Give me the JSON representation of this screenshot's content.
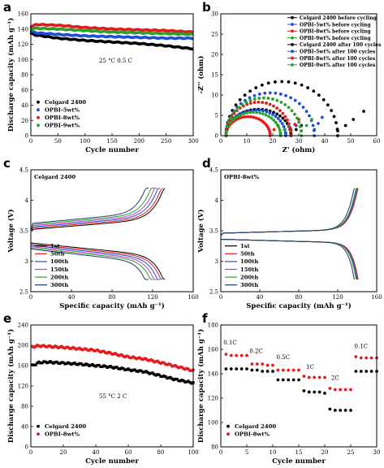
{
  "chart_data": [
    {
      "id": "a",
      "type": "scatter",
      "panel_label": "a",
      "xlabel": "Cycle number",
      "ylabel": "Discharge capacity (mAh g⁻¹)",
      "xlim": [
        0,
        300
      ],
      "ylim": [
        0,
        160
      ],
      "xticks": [
        0,
        50,
        100,
        150,
        200,
        250,
        300
      ],
      "yticks": [
        0,
        20,
        40,
        60,
        80,
        100,
        120,
        140,
        160
      ],
      "annotation": "25 °C 0.5 C",
      "legend_position": "bottom-left",
      "series": [
        {
          "name": "Celgard 2400",
          "color": "#000000",
          "x": [
            1,
            10,
            50,
            100,
            150,
            200,
            250,
            300
          ],
          "y": [
            134,
            132,
            128,
            125,
            123,
            121,
            118,
            114
          ]
        },
        {
          "name": "OPBI-5wt%",
          "color": "#1f4fd8",
          "x": [
            1,
            10,
            50,
            100,
            150,
            200,
            250,
            300
          ],
          "y": [
            137,
            135,
            133,
            131,
            130,
            129,
            128,
            128
          ]
        },
        {
          "name": "OPBI-8wt%",
          "color": "#e41a1c",
          "x": [
            1,
            10,
            50,
            100,
            150,
            200,
            250,
            300
          ],
          "y": [
            143,
            146,
            145,
            142,
            140,
            139,
            138,
            136
          ]
        },
        {
          "name": "OPBI-9wt%",
          "color": "#2ca02c",
          "x": [
            1,
            10,
            50,
            100,
            150,
            200,
            250,
            300
          ],
          "y": [
            140,
            141,
            140,
            138,
            136,
            135,
            134,
            133
          ]
        }
      ]
    },
    {
      "id": "b",
      "type": "scatter",
      "panel_label": "b",
      "xlabel": "Z' (ohm)",
      "ylabel": "-Z'' (ohm)",
      "xlim": [
        0,
        60
      ],
      "ylim": [
        0,
        30
      ],
      "xticks": [
        0,
        10,
        20,
        30,
        40,
        50,
        60
      ],
      "yticks": [
        0,
        5,
        10,
        15,
        20,
        25,
        30
      ],
      "legend_position": "top-right",
      "series": [
        {
          "name": "Celgard 2400 before cycling",
          "color": "#000000",
          "arc": [
            2,
            27,
            0.52
          ],
          "tail": [
            [
              27,
              0.5
            ],
            [
              29,
              1.5
            ],
            [
              31,
              2.5
            ]
          ]
        },
        {
          "name": "OPBI-5wt% before cycling",
          "color": "#1f4fd8",
          "arc": [
            2,
            25,
            0.55
          ],
          "tail": [
            [
              25,
              0.5
            ],
            [
              27,
              1.5
            ],
            [
              29,
              2.5
            ]
          ]
        },
        {
          "name": "OPBI-8wt% before cycling",
          "color": "#e41a1c",
          "arc": [
            2,
            19,
            0.55
          ],
          "tail": [
            [
              19,
              0.5
            ],
            [
              20.5,
              1.5
            ],
            [
              22,
              2.5
            ]
          ]
        },
        {
          "name": "OPBI-9wt% before cycling",
          "color": "#2ca02c",
          "arc": [
            2,
            23,
            0.55
          ],
          "tail": [
            [
              23,
              0.5
            ],
            [
              24.5,
              1.5
            ],
            [
              26,
              2.5
            ]
          ]
        },
        {
          "name": "Celgard 2400 after 100 cycles",
          "color": "#000000",
          "arc": [
            2,
            45,
            0.62
          ],
          "tail": [
            [
              45,
              1.2
            ],
            [
              48,
              2.5
            ],
            [
              51,
              4
            ],
            [
              55,
              6
            ]
          ]
        },
        {
          "name": "OPBI-5wt% after 100 cycles",
          "color": "#1f4fd8",
          "arc": [
            2,
            36,
            0.62
          ],
          "tail": [
            [
              36,
              1.5
            ],
            [
              37.5,
              3
            ],
            [
              39,
              4.5
            ]
          ]
        },
        {
          "name": "OPBI-8wt% after 100 cycles",
          "color": "#e41a1c",
          "arc": [
            2,
            27,
            0.66
          ],
          "tail": [
            [
              27,
              1.2
            ],
            [
              28.5,
              2.8
            ],
            [
              30,
              4
            ]
          ]
        },
        {
          "name": "OPBI-9wt% after 100 cycles",
          "color": "#2ca02c",
          "arc": [
            2,
            31,
            0.64
          ],
          "tail": [
            [
              31,
              1.2
            ],
            [
              33,
              2.5
            ],
            [
              35,
              4
            ]
          ]
        }
      ]
    },
    {
      "id": "c",
      "type": "line",
      "panel_label": "c",
      "title": "Celgard 2400",
      "xlabel": "Specific capacity (mAh g⁻¹)",
      "ylabel": "Voltage (V)",
      "xlim": [
        0,
        160
      ],
      "ylim": [
        2.5,
        4.5
      ],
      "xticks": [
        0,
        40,
        80,
        120,
        160
      ],
      "yticks": [
        2.5,
        3.0,
        3.5,
        4.0,
        4.5
      ],
      "legend_position": "bottom-left",
      "series": [
        {
          "name": "1st",
          "color": "#000000",
          "capacity": 132
        },
        {
          "name": "50th",
          "color": "#e41a1c",
          "capacity": 130
        },
        {
          "name": "100th",
          "color": "#1f4fd8",
          "capacity": 127
        },
        {
          "name": "150th",
          "color": "#c040c0",
          "capacity": 124
        },
        {
          "name": "200th",
          "color": "#2ca02c",
          "capacity": 121
        },
        {
          "name": "300th",
          "color": "#1f3a6e",
          "capacity": 116
        }
      ]
    },
    {
      "id": "d",
      "type": "line",
      "panel_label": "d",
      "title": "OPBI-8wt%",
      "xlabel": "Specific capacity (mAh g⁻¹)",
      "ylabel": "Voltage (V)",
      "xlim": [
        0,
        160
      ],
      "ylim": [
        2.5,
        4.5
      ],
      "xticks": [
        0,
        40,
        80,
        120,
        160
      ],
      "yticks": [
        2.5,
        3.0,
        3.5,
        4.0,
        4.5
      ],
      "legend_position": "bottom-left",
      "series": [
        {
          "name": "1st",
          "color": "#000000",
          "capacity": 140
        },
        {
          "name": "50th",
          "color": "#e41a1c",
          "capacity": 141
        },
        {
          "name": "100th",
          "color": "#1f4fd8",
          "capacity": 140
        },
        {
          "name": "150th",
          "color": "#c040c0",
          "capacity": 139
        },
        {
          "name": "200th",
          "color": "#2ca02c",
          "capacity": 139
        },
        {
          "name": "300th",
          "color": "#1f3a6e",
          "capacity": 137
        }
      ]
    },
    {
      "id": "e",
      "type": "scatter",
      "panel_label": "e",
      "xlabel": "Cycle number",
      "ylabel": "Discharge capacity (mAh g⁻¹)",
      "xlim": [
        0,
        100
      ],
      "ylim": [
        0,
        240
      ],
      "xticks": [
        0,
        20,
        40,
        60,
        80,
        100
      ],
      "yticks": [
        0,
        40,
        80,
        120,
        160,
        200,
        240
      ],
      "annotation": "55 °C 2 C",
      "legend_position": "bottom-left",
      "series": [
        {
          "name": "Celgard 2400",
          "color": "#000000",
          "x": [
            1,
            5,
            10,
            20,
            30,
            40,
            50,
            60,
            70,
            80,
            90,
            100
          ],
          "y": [
            160,
            166,
            167,
            165,
            163,
            160,
            157,
            152,
            148,
            140,
            132,
            126
          ]
        },
        {
          "name": "OPBI-8wt%",
          "color": "#e41a1c",
          "x": [
            1,
            5,
            10,
            20,
            30,
            40,
            50,
            60,
            70,
            80,
            90,
            100
          ],
          "y": [
            197,
            199,
            198,
            196,
            193,
            190,
            184,
            177,
            173,
            166,
            158,
            150
          ]
        }
      ]
    },
    {
      "id": "f",
      "type": "scatter",
      "panel_label": "f",
      "xlabel": "Cycle number",
      "ylabel": "Discharge capacity (mAh g⁻¹)",
      "xlim": [
        0,
        30
      ],
      "ylim": [
        80,
        180
      ],
      "xticks": [
        0,
        5,
        10,
        15,
        20,
        25,
        30
      ],
      "yticks": [
        80,
        100,
        120,
        140,
        160,
        180
      ],
      "legend_position": "bottom-left",
      "rate_labels": [
        {
          "text": "0.1C",
          "x": 1.8,
          "y": 164
        },
        {
          "text": "0.2C",
          "x": 6.8,
          "y": 157
        },
        {
          "text": "0.5C",
          "x": 12.0,
          "y": 152
        },
        {
          "text": "1C",
          "x": 17.2,
          "y": 144
        },
        {
          "text": "2C",
          "x": 22.0,
          "y": 135
        },
        {
          "text": "0.1C",
          "x": 27.0,
          "y": 161
        }
      ],
      "series": [
        {
          "name": "Celgard 2400",
          "color": "#000000",
          "x": [
            1,
            2,
            3,
            4,
            5,
            6,
            7,
            8,
            9,
            10,
            11,
            12,
            13,
            14,
            15,
            16,
            17,
            18,
            19,
            20,
            21,
            22,
            23,
            24,
            25,
            26,
            27,
            28,
            29,
            30
          ],
          "y": [
            144,
            144,
            144,
            144,
            144,
            143,
            143,
            142,
            142,
            142,
            135,
            135,
            135,
            135,
            135,
            126,
            125,
            125,
            125,
            124,
            111,
            110,
            110,
            110,
            110,
            142,
            142,
            142,
            142,
            142
          ]
        },
        {
          "name": "OPBI-8wt%",
          "color": "#e41a1c",
          "x": [
            1,
            2,
            3,
            4,
            5,
            6,
            7,
            8,
            9,
            10,
            11,
            12,
            13,
            14,
            15,
            16,
            17,
            18,
            19,
            20,
            21,
            22,
            23,
            24,
            25,
            26,
            27,
            28,
            29,
            30
          ],
          "y": [
            156,
            155,
            155,
            155,
            155,
            148,
            148,
            148,
            147,
            147,
            143,
            143,
            143,
            143,
            143,
            138,
            137,
            137,
            137,
            137,
            128,
            127,
            127,
            127,
            127,
            154,
            153,
            153,
            153,
            153
          ]
        }
      ]
    }
  ]
}
